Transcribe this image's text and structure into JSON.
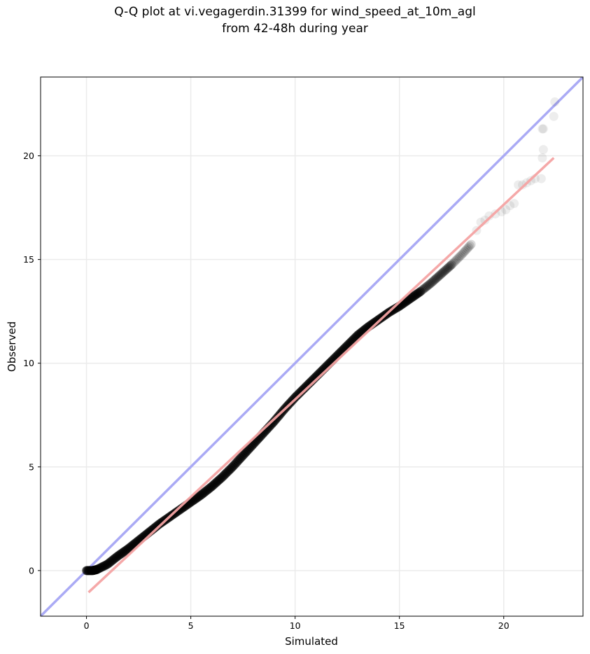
{
  "chart_data": {
    "type": "scatter",
    "title_line1": "Q-Q plot at vi.vegagerdin.31399 for wind_speed_at_10m_agl",
    "title_line2": "from 42-48h during year",
    "xlabel": "Simulated",
    "ylabel": "Observed",
    "xlim": [
      -2.2,
      23.8
    ],
    "ylim": [
      -2.2,
      23.8
    ],
    "xticks": [
      0,
      5,
      10,
      15,
      20
    ],
    "yticks": [
      0,
      5,
      10,
      15,
      20
    ],
    "grid": true,
    "reference_line": {
      "label": "y = x",
      "color": "#aaaaf5",
      "slope": 1,
      "intercept": 0
    },
    "fit_line": {
      "color": "#f4a3a3",
      "x": [
        0.1,
        22.4
      ],
      "y": [
        -1.05,
        19.9
      ]
    },
    "quantile_curve": {
      "x": [
        0.0,
        0.3,
        0.5,
        1.0,
        1.5,
        2.0,
        2.5,
        3.0,
        3.5,
        4.0,
        4.5,
        5.0,
        5.5,
        6.0,
        6.5,
        7.0,
        7.5,
        8.0,
        8.5,
        9.0,
        9.5,
        10.0,
        10.5,
        11.0,
        11.5,
        12.0,
        12.5,
        13.0,
        13.5,
        14.0,
        14.5,
        15.0,
        15.5,
        16.0,
        16.5,
        17.0,
        17.5,
        18.0,
        18.5
      ],
      "y": [
        0.0,
        0.0,
        0.05,
        0.3,
        0.7,
        1.05,
        1.45,
        1.85,
        2.25,
        2.6,
        2.95,
        3.3,
        3.65,
        4.05,
        4.5,
        5.0,
        5.55,
        6.1,
        6.65,
        7.2,
        7.8,
        8.35,
        8.85,
        9.35,
        9.85,
        10.35,
        10.85,
        11.35,
        11.75,
        12.1,
        12.45,
        12.75,
        13.1,
        13.45,
        13.85,
        14.3,
        14.75,
        15.25,
        15.8
      ]
    },
    "points": {
      "x": [
        18.7,
        18.9,
        19.1,
        19.3,
        19.6,
        19.9,
        20.1,
        20.3,
        20.5,
        20.7,
        20.9,
        21.1,
        21.3,
        21.5,
        21.8,
        21.85,
        21.9,
        22.4,
        22.45
      ],
      "y": [
        16.4,
        16.8,
        16.9,
        17.1,
        17.2,
        17.3,
        17.4,
        17.6,
        17.7,
        18.6,
        18.6,
        18.7,
        18.8,
        18.9,
        18.9,
        19.9,
        20.3,
        21.9,
        22.6
      ],
      "extra_x": [
        21.85,
        21.9
      ],
      "extra_y": [
        21.3,
        21.3
      ]
    }
  }
}
